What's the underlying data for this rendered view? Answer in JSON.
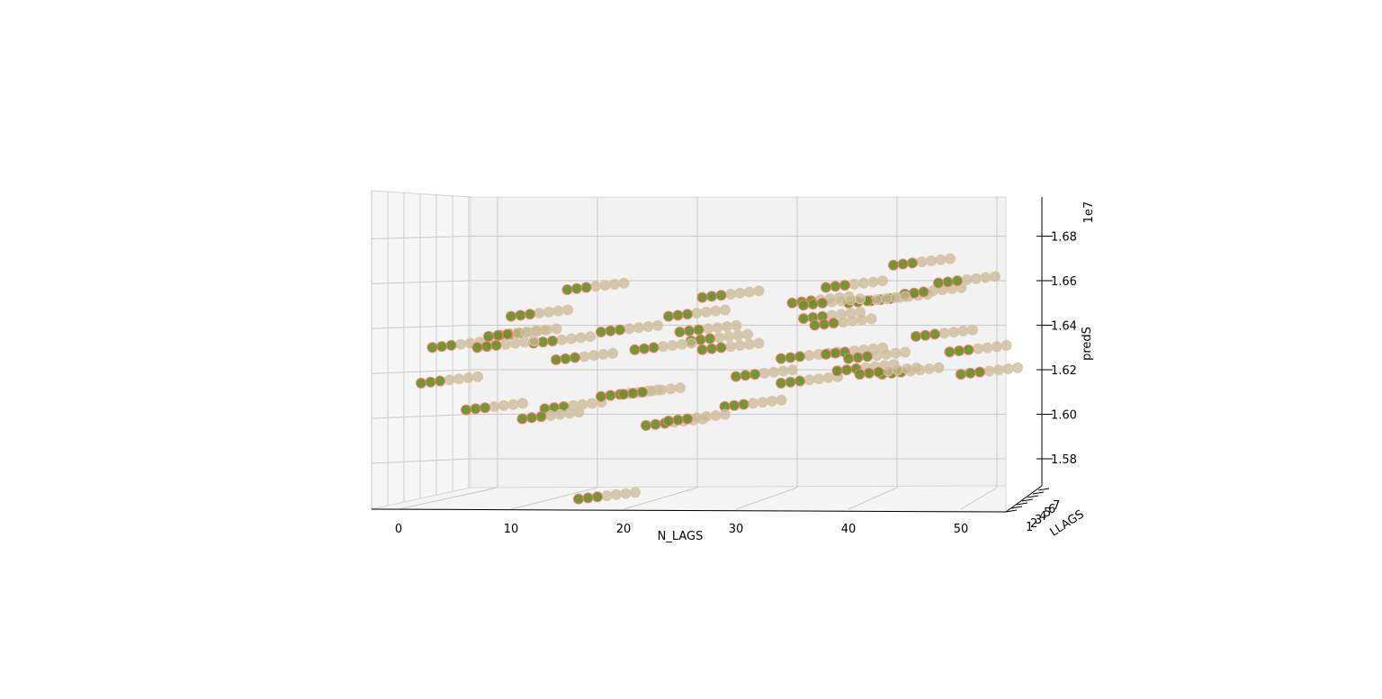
{
  "chart_data": {
    "type": "scatter",
    "projection": "3d",
    "title": "",
    "xlabel": "N_LAGS",
    "ylabel": "LLAGS",
    "zlabel": "predS",
    "z_offset_text": "1e7",
    "xticks": [
      "0",
      "10",
      "20",
      "30",
      "40",
      "50"
    ],
    "yticks": [
      "1",
      "2",
      "3",
      "4",
      "5",
      "6",
      "7"
    ],
    "zticks": [
      "1.58",
      "1.60",
      "1.62",
      "1.64",
      "1.66",
      "1.68"
    ],
    "xlim": [
      -2,
      54
    ],
    "ylim": [
      1,
      7
    ],
    "zlim": [
      1.57,
      1.695
    ],
    "grid": true,
    "colors": {
      "marker_face": "#6f8f2a",
      "marker_edge": "#f08070",
      "pane_back": "#f2f2f2",
      "pane_side": "#f7f7f7",
      "grid": "#c8c8c8"
    },
    "series": [
      {
        "values": [
          {
            "x": 14,
            "y": 1,
            "z": 1.6265
          },
          {
            "x": 3,
            "y": 1,
            "z": 1.632
          },
          {
            "x": 12,
            "y": 1,
            "z": 1.634
          },
          {
            "x": 15,
            "y": 1,
            "z": 1.658
          },
          {
            "x": 27,
            "y": 1,
            "z": 1.6545
          },
          {
            "x": 30,
            "y": 1,
            "z": 1.619
          },
          {
            "x": 25,
            "y": 1,
            "z": 1.639
          },
          {
            "x": 36,
            "y": 1,
            "z": 1.645
          },
          {
            "x": 42,
            "y": 1,
            "z": 1.653
          },
          {
            "x": 45,
            "y": 1,
            "z": 1.656
          },
          {
            "x": 26,
            "y": 1,
            "z": 1.635
          },
          {
            "x": 2,
            "y": 1,
            "z": 1.616
          },
          {
            "x": 13,
            "y": 1,
            "z": 1.6045
          },
          {
            "x": 11,
            "y": 1,
            "z": 1.6
          },
          {
            "x": 22,
            "y": 1,
            "z": 1.597
          },
          {
            "x": 18,
            "y": 1,
            "z": 1.61
          },
          {
            "x": 20,
            "y": 1,
            "z": 1.611
          },
          {
            "x": 16,
            "y": 1,
            "z": 1.564
          },
          {
            "x": 6,
            "y": 1,
            "z": 1.604
          },
          {
            "x": 34,
            "y": 1,
            "z": 1.616
          },
          {
            "x": 29,
            "y": 1,
            "z": 1.6055
          },
          {
            "x": 37,
            "y": 1,
            "z": 1.642
          },
          {
            "x": 40,
            "y": 1,
            "z": 1.652
          },
          {
            "x": 39,
            "y": 1,
            "z": 1.6215
          },
          {
            "x": 43,
            "y": 1,
            "z": 1.62
          },
          {
            "x": 50,
            "y": 1,
            "z": 1.62
          },
          {
            "x": 48,
            "y": 1,
            "z": 1.661
          },
          {
            "x": 34,
            "y": 1,
            "z": 1.627
          },
          {
            "x": 46,
            "y": 1,
            "z": 1.637
          },
          {
            "x": 49,
            "y": 1,
            "z": 1.63
          },
          {
            "x": 35,
            "y": 1,
            "z": 1.652
          },
          {
            "x": 18,
            "y": 1,
            "z": 1.639
          },
          {
            "x": 7,
            "y": 1,
            "z": 1.632
          },
          {
            "x": 24,
            "y": 1,
            "z": 1.646
          },
          {
            "x": 10,
            "y": 1,
            "z": 1.646
          },
          {
            "x": 27,
            "y": 1,
            "z": 1.631
          },
          {
            "x": 9,
            "y": 1,
            "z": 1.6375
          },
          {
            "x": 21,
            "y": 1,
            "z": 1.631
          },
          {
            "x": 24,
            "y": 1,
            "z": 1.599
          },
          {
            "x": 38,
            "y": 1,
            "z": 1.629
          },
          {
            "x": 38,
            "y": 1,
            "z": 1.659
          },
          {
            "x": 40,
            "y": 1,
            "z": 1.627
          },
          {
            "x": 8,
            "y": 1,
            "z": 1.637
          },
          {
            "x": 44,
            "y": 1,
            "z": 1.669
          },
          {
            "x": 36,
            "y": 1,
            "z": 1.651
          },
          {
            "x": 41,
            "y": 1,
            "z": 1.62
          }
        ]
      }
    ]
  }
}
